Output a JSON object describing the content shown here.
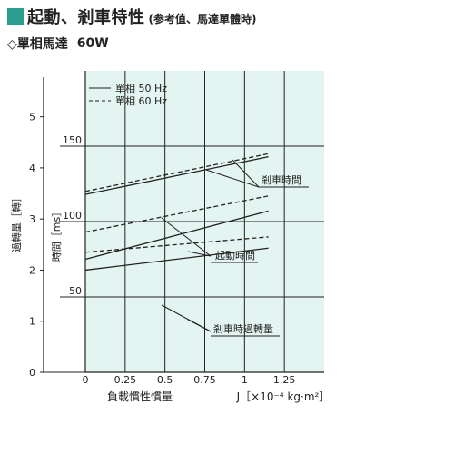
{
  "header": {
    "title": "起動、剎車特性",
    "title_note": "(参考值、馬達單體時)",
    "subtitle_prefix": "◇單相馬達",
    "subtitle_model": "60W"
  },
  "colors": {
    "plot_bg": "#e3f4f1",
    "accent": "#2a9d8f",
    "line": "#222222"
  },
  "chart_data": {
    "type": "line",
    "xlabel": "負載慣性慣量",
    "xunit": "J［×10⁻⁴ kg·m²］",
    "x_ticks": [
      "0",
      "0.25",
      "0.5",
      "0.75",
      "1",
      "1.25"
    ],
    "xlim": [
      0,
      1.5
    ],
    "ylabel": "時間［ms］",
    "y_ticks": [
      "50",
      "100",
      "150"
    ],
    "ylim": [
      0,
      200
    ],
    "y2label": "過轉量［轉］",
    "y2_ticks": [
      "0",
      "1",
      "2",
      "3",
      "4",
      "5"
    ],
    "y2lim": [
      0,
      5.9
    ],
    "grid": true,
    "legend_position": "top-left",
    "legend": [
      {
        "label": "單相 50 Hz",
        "style": "solid"
      },
      {
        "label": "單相 60 Hz",
        "style": "dashed"
      }
    ],
    "annotations": {
      "brake_time": "剎車時間",
      "start_time": "起動時間",
      "brake_overrun": "剎車時過轉量"
    },
    "series": [
      {
        "group": "剎車時間",
        "style": "solid",
        "axis": "time",
        "x": [
          0,
          1.15
        ],
        "y": [
          118,
          143
        ]
      },
      {
        "group": "剎車時間",
        "style": "dashed",
        "axis": "time",
        "x": [
          0,
          1.15
        ],
        "y": [
          120,
          145
        ]
      },
      {
        "group": "起動時間",
        "style": "solid",
        "axis": "time",
        "x": [
          0,
          1.15
        ],
        "y": [
          75,
          107
        ]
      },
      {
        "group": "起動時間",
        "style": "dashed",
        "axis": "time",
        "x": [
          0,
          1.15
        ],
        "y": [
          93,
          117
        ]
      },
      {
        "group": "剎車時過轉量",
        "style": "solid",
        "axis": "overrun",
        "x": [
          0,
          1.15
        ],
        "y": [
          2.0,
          2.43
        ]
      },
      {
        "group": "剎車時過轉量",
        "style": "dashed",
        "axis": "overrun",
        "x": [
          0,
          1.15
        ],
        "y": [
          2.35,
          2.65
        ]
      }
    ]
  }
}
